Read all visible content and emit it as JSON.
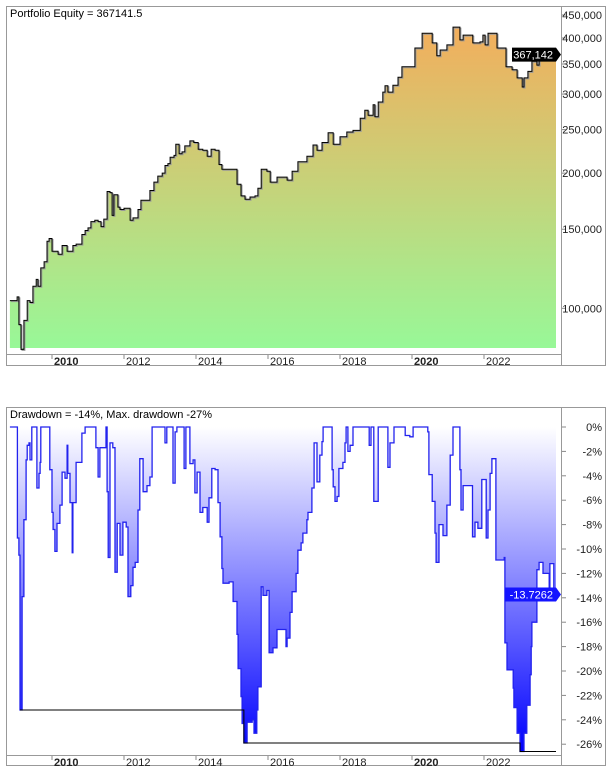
{
  "chart_data": [
    {
      "type": "area",
      "title": "Portfolio Equity = 367141.5",
      "y_scale": "log",
      "ylim": [
        80000,
        460000
      ],
      "xlim": [
        2008.8,
        2024.0
      ],
      "y_ticks": [
        100000,
        150000,
        200000,
        250000,
        300000,
        350000,
        400000,
        450000
      ],
      "x_ticks": [
        {
          "year": 2010,
          "label": "2010",
          "bold": true
        },
        {
          "year": 2012,
          "label": "2012",
          "bold": false
        },
        {
          "year": 2014,
          "label": "2014",
          "bold": false
        },
        {
          "year": 2016,
          "label": "2016",
          "bold": false
        },
        {
          "year": 2018,
          "label": "2018",
          "bold": false
        },
        {
          "year": 2020,
          "label": "2020",
          "bold": true
        },
        {
          "year": 2022,
          "label": "2022",
          "bold": false
        }
      ],
      "current_value_label": "367,142",
      "colors": {
        "top": "#f6ab5a",
        "bottom": "#98f898",
        "line": "#000000"
      },
      "series": [
        [
          2008.83,
          104000
        ],
        [
          2009.03,
          106000
        ],
        [
          2009.08,
          92000
        ],
        [
          2009.14,
          81000
        ],
        [
          2009.22,
          94000
        ],
        [
          2009.31,
          104000
        ],
        [
          2009.39,
          103000
        ],
        [
          2009.47,
          112000
        ],
        [
          2009.56,
          116000
        ],
        [
          2009.61,
          112000
        ],
        [
          2009.69,
          123000
        ],
        [
          2009.78,
          127000
        ],
        [
          2009.86,
          141000
        ],
        [
          2009.92,
          143000
        ],
        [
          2010.0,
          134000
        ],
        [
          2010.17,
          132000
        ],
        [
          2010.28,
          138000
        ],
        [
          2010.42,
          134000
        ],
        [
          2010.58,
          138000
        ],
        [
          2010.67,
          139000
        ],
        [
          2010.83,
          146000
        ],
        [
          2010.92,
          149000
        ],
        [
          2011.0,
          151000
        ],
        [
          2011.08,
          156000
        ],
        [
          2011.19,
          157000
        ],
        [
          2011.28,
          156000
        ],
        [
          2011.36,
          152000
        ],
        [
          2011.44,
          158000
        ],
        [
          2011.53,
          182000
        ],
        [
          2011.61,
          181000
        ],
        [
          2011.67,
          161000
        ],
        [
          2011.72,
          179000
        ],
        [
          2011.83,
          168000
        ],
        [
          2011.89,
          166000
        ],
        [
          2012.0,
          167000
        ],
        [
          2012.17,
          157000
        ],
        [
          2012.25,
          159000
        ],
        [
          2012.39,
          166000
        ],
        [
          2012.47,
          174000
        ],
        [
          2012.72,
          183000
        ],
        [
          2012.83,
          191000
        ],
        [
          2012.94,
          197000
        ],
        [
          2013.06,
          200000
        ],
        [
          2013.14,
          208000
        ],
        [
          2013.22,
          210000
        ],
        [
          2013.28,
          217000
        ],
        [
          2013.39,
          219000
        ],
        [
          2013.44,
          232000
        ],
        [
          2013.53,
          221000
        ],
        [
          2013.61,
          223000
        ],
        [
          2013.69,
          230000
        ],
        [
          2013.83,
          236000
        ],
        [
          2013.94,
          234000
        ],
        [
          2014.06,
          226000
        ],
        [
          2014.19,
          225000
        ],
        [
          2014.31,
          218000
        ],
        [
          2014.42,
          226000
        ],
        [
          2014.53,
          225000
        ],
        [
          2014.64,
          209000
        ],
        [
          2014.72,
          204000
        ],
        [
          2015.14,
          189000
        ],
        [
          2015.25,
          178000
        ],
        [
          2015.36,
          175000
        ],
        [
          2015.5,
          177000
        ],
        [
          2015.64,
          178000
        ],
        [
          2015.72,
          185000
        ],
        [
          2015.81,
          204000
        ],
        [
          2015.97,
          202000
        ],
        [
          2016.06,
          191000
        ],
        [
          2016.25,
          196000
        ],
        [
          2016.53,
          193000
        ],
        [
          2016.67,
          202000
        ],
        [
          2016.83,
          212000
        ],
        [
          2017.08,
          218000
        ],
        [
          2017.25,
          231000
        ],
        [
          2017.36,
          225000
        ],
        [
          2017.5,
          234000
        ],
        [
          2017.67,
          246000
        ],
        [
          2017.81,
          232000
        ],
        [
          2018.0,
          241000
        ],
        [
          2018.19,
          247000
        ],
        [
          2018.36,
          249000
        ],
        [
          2018.56,
          265000
        ],
        [
          2018.69,
          276000
        ],
        [
          2018.78,
          269000
        ],
        [
          2018.92,
          284000
        ],
        [
          2018.97,
          267000
        ],
        [
          2019.06,
          288000
        ],
        [
          2019.19,
          303000
        ],
        [
          2019.25,
          313000
        ],
        [
          2019.33,
          303000
        ],
        [
          2019.47,
          314000
        ],
        [
          2019.61,
          327000
        ],
        [
          2019.72,
          345000
        ],
        [
          2020.08,
          380000
        ],
        [
          2020.28,
          410000
        ],
        [
          2020.56,
          390000
        ],
        [
          2020.69,
          365000
        ],
        [
          2020.78,
          376000
        ],
        [
          2020.97,
          386000
        ],
        [
          2021.14,
          423000
        ],
        [
          2021.33,
          396000
        ],
        [
          2021.42,
          406000
        ],
        [
          2021.69,
          390000
        ],
        [
          2021.89,
          392000
        ],
        [
          2021.97,
          406000
        ],
        [
          2022.03,
          386000
        ],
        [
          2022.11,
          410000
        ],
        [
          2022.36,
          380000
        ],
        [
          2022.61,
          345000
        ],
        [
          2022.78,
          340000
        ],
        [
          2022.92,
          326000
        ],
        [
          2023.06,
          311000
        ],
        [
          2023.11,
          326000
        ],
        [
          2023.22,
          337000
        ],
        [
          2023.33,
          355000
        ],
        [
          2023.47,
          348000
        ],
        [
          2023.53,
          376000
        ],
        [
          2023.64,
          373000
        ],
        [
          2023.78,
          370000
        ],
        [
          2023.83,
          376000
        ],
        [
          2023.92,
          368000
        ],
        [
          2024.0,
          367142
        ]
      ]
    },
    {
      "type": "area",
      "title": "Drawdown = -14%, Max. drawdown -27%",
      "ylim": [
        -27.5,
        0
      ],
      "xlim": [
        2008.8,
        2024.0
      ],
      "y_ticks": [
        0,
        -2,
        -4,
        -6,
        -8,
        -10,
        -12,
        -14,
        -16,
        -18,
        -20,
        -22,
        -24,
        -26
      ],
      "y_tick_labels": [
        "0%",
        "-2%",
        "-4%",
        "-6%",
        "-8%",
        "-10%",
        "-12%",
        "-14%",
        "-16%",
        "-18%",
        "-20%",
        "-22%",
        "-24%",
        "-26%"
      ],
      "x_ticks": [
        {
          "year": 2010,
          "label": "2010",
          "bold": true
        },
        {
          "year": 2012,
          "label": "2012",
          "bold": false
        },
        {
          "year": 2014,
          "label": "2014",
          "bold": false
        },
        {
          "year": 2016,
          "label": "2016",
          "bold": false
        },
        {
          "year": 2018,
          "label": "2018",
          "bold": false
        },
        {
          "year": 2020,
          "label": "2020",
          "bold": true
        },
        {
          "year": 2022,
          "label": "2022",
          "bold": false
        }
      ],
      "current_value_label": "-13.7262",
      "colors": {
        "top": "#ffffff",
        "bottom": "#0000ff",
        "line": "#2222ee",
        "max_line": "#000000"
      },
      "max_drawdown_steps": [
        [
          2009.11,
          -23.2
        ],
        [
          2015.33,
          -25.9
        ],
        [
          2023.0,
          -26.6
        ]
      ],
      "series": [
        [
          2008.83,
          0
        ],
        [
          2009.03,
          0
        ],
        [
          2009.04,
          -9.1
        ],
        [
          2009.08,
          -10.5
        ],
        [
          2009.11,
          -23.2
        ],
        [
          2009.17,
          -13.9
        ],
        [
          2009.22,
          -7.6
        ],
        [
          2009.28,
          -2.7
        ],
        [
          2009.31,
          -1.5
        ],
        [
          2009.36,
          -1.3
        ],
        [
          2009.39,
          -2.7
        ],
        [
          2009.44,
          0
        ],
        [
          2009.58,
          -5.0
        ],
        [
          2009.64,
          -3.8
        ],
        [
          2009.67,
          -2.9
        ],
        [
          2009.69,
          0
        ],
        [
          2009.94,
          -3.5
        ],
        [
          2010.0,
          -7.0
        ],
        [
          2010.03,
          -8.4
        ],
        [
          2010.08,
          -10.2
        ],
        [
          2010.14,
          -7.9
        ],
        [
          2010.22,
          -6.4
        ],
        [
          2010.28,
          -3.7
        ],
        [
          2010.36,
          -4.2
        ],
        [
          2010.42,
          -1.5
        ],
        [
          2010.44,
          -3.8
        ],
        [
          2010.5,
          -6.2
        ],
        [
          2010.56,
          -10.3
        ],
        [
          2010.58,
          -6.2
        ],
        [
          2010.67,
          -2.9
        ],
        [
          2010.83,
          -0.5
        ],
        [
          2010.92,
          0
        ],
        [
          2011.22,
          -1.7
        ],
        [
          2011.28,
          -4.1
        ],
        [
          2011.33,
          -1.7
        ],
        [
          2011.5,
          0
        ],
        [
          2011.53,
          -5.3
        ],
        [
          2011.56,
          -10.7
        ],
        [
          2011.61,
          -1.3
        ],
        [
          2011.69,
          -1.7
        ],
        [
          2011.75,
          -11.9
        ],
        [
          2011.81,
          -7.9
        ],
        [
          2011.89,
          -10.5
        ],
        [
          2011.97,
          -7.8
        ],
        [
          2012.06,
          -8.2
        ],
        [
          2012.11,
          -13.9
        ],
        [
          2012.19,
          -13.0
        ],
        [
          2012.25,
          -11.5
        ],
        [
          2012.31,
          -11.1
        ],
        [
          2012.39,
          -6.8
        ],
        [
          2012.44,
          -2.6
        ],
        [
          2012.53,
          -5.3
        ],
        [
          2012.64,
          -4.8
        ],
        [
          2012.72,
          -4.1
        ],
        [
          2012.78,
          0
        ],
        [
          2013.14,
          -1.3
        ],
        [
          2013.19,
          0
        ],
        [
          2013.36,
          -4.6
        ],
        [
          2013.42,
          -0.4
        ],
        [
          2013.47,
          0
        ],
        [
          2013.67,
          -3.4
        ],
        [
          2013.72,
          0
        ],
        [
          2013.83,
          -3.0
        ],
        [
          2013.92,
          -2.7
        ],
        [
          2013.97,
          -5.4
        ],
        [
          2014.03,
          -3.7
        ],
        [
          2014.11,
          -7.0
        ],
        [
          2014.19,
          -6.6
        ],
        [
          2014.31,
          -7.8
        ],
        [
          2014.36,
          -5.8
        ],
        [
          2014.44,
          -3.4
        ],
        [
          2014.53,
          -3.5
        ],
        [
          2014.61,
          -6.2
        ],
        [
          2014.67,
          -9.0
        ],
        [
          2014.72,
          -11.6
        ],
        [
          2014.75,
          -12.8
        ],
        [
          2014.92,
          -12.7
        ],
        [
          2015.03,
          -14.3
        ],
        [
          2015.14,
          -17.0
        ],
        [
          2015.17,
          -19.8
        ],
        [
          2015.25,
          -22.1
        ],
        [
          2015.28,
          -24.3
        ],
        [
          2015.33,
          -25.9
        ],
        [
          2015.42,
          -24.2
        ],
        [
          2015.56,
          -24.0
        ],
        [
          2015.61,
          -25.1
        ],
        [
          2015.69,
          -23.2
        ],
        [
          2015.72,
          -21.3
        ],
        [
          2015.81,
          -13.1
        ],
        [
          2015.86,
          -13.8
        ],
        [
          2015.97,
          -13.4
        ],
        [
          2016.03,
          -18.5
        ],
        [
          2016.14,
          -18.1
        ],
        [
          2016.25,
          -16.6
        ],
        [
          2016.5,
          -18.0
        ],
        [
          2016.53,
          -17.3
        ],
        [
          2016.61,
          -15.2
        ],
        [
          2016.67,
          -13.5
        ],
        [
          2016.78,
          -12.0
        ],
        [
          2016.83,
          -10.1
        ],
        [
          2016.92,
          -9.5
        ],
        [
          2016.97,
          -8.7
        ],
        [
          2017.08,
          -7.6
        ],
        [
          2017.11,
          -7.0
        ],
        [
          2017.22,
          -5.0
        ],
        [
          2017.28,
          -1.3
        ],
        [
          2017.36,
          -4.5
        ],
        [
          2017.44,
          -2.3
        ],
        [
          2017.5,
          -1.2
        ],
        [
          2017.53,
          0
        ],
        [
          2017.78,
          -3.5
        ],
        [
          2017.81,
          -4.9
        ],
        [
          2017.86,
          -6.1
        ],
        [
          2017.92,
          -5.7
        ],
        [
          2017.97,
          -3.4
        ],
        [
          2018.08,
          -2.9
        ],
        [
          2018.14,
          -1.3
        ],
        [
          2018.17,
          0
        ],
        [
          2018.22,
          -2.0
        ],
        [
          2018.28,
          -1.5
        ],
        [
          2018.36,
          0
        ],
        [
          2018.81,
          -1.5
        ],
        [
          2018.86,
          0
        ],
        [
          2018.94,
          -6.1
        ],
        [
          2019.06,
          0
        ],
        [
          2019.33,
          -3.3
        ],
        [
          2019.39,
          -1.3
        ],
        [
          2019.5,
          0
        ],
        [
          2019.81,
          -0.7
        ],
        [
          2019.94,
          -0.8
        ],
        [
          2020.03,
          0
        ],
        [
          2020.44,
          -0.4
        ],
        [
          2020.47,
          -3.9
        ],
        [
          2020.56,
          -6.1
        ],
        [
          2020.64,
          -8.7
        ],
        [
          2020.67,
          -11.1
        ],
        [
          2020.75,
          -8.0
        ],
        [
          2020.86,
          -8.9
        ],
        [
          2020.97,
          -6.4
        ],
        [
          2021.06,
          -2.3
        ],
        [
          2021.14,
          0
        ],
        [
          2021.33,
          -3.5
        ],
        [
          2021.36,
          -6.8
        ],
        [
          2021.42,
          -4.8
        ],
        [
          2021.68,
          -9.0
        ],
        [
          2021.75,
          -7.8
        ],
        [
          2021.83,
          -8.3
        ],
        [
          2021.94,
          -4.3
        ],
        [
          2022.06,
          -9.1
        ],
        [
          2022.11,
          -6.8
        ],
        [
          2022.17,
          -3.8
        ],
        [
          2022.22,
          -2.6
        ],
        [
          2022.33,
          -10.9
        ],
        [
          2022.56,
          -10.7
        ],
        [
          2022.58,
          -17.7
        ],
        [
          2022.64,
          -19.9
        ],
        [
          2022.81,
          -21.4
        ],
        [
          2022.83,
          -23.0
        ],
        [
          2022.92,
          -25.1
        ],
        [
          2023.0,
          -26.6
        ],
        [
          2023.11,
          -25.1
        ],
        [
          2023.19,
          -22.8
        ],
        [
          2023.28,
          -20.3
        ],
        [
          2023.31,
          -18.0
        ],
        [
          2023.33,
          -16.0
        ],
        [
          2023.47,
          -11.7
        ],
        [
          2023.53,
          -11.1
        ],
        [
          2023.64,
          -12.0
        ],
        [
          2023.81,
          -13.9
        ],
        [
          2023.83,
          -11.2
        ],
        [
          2023.94,
          -13.3
        ],
        [
          2024.0,
          -13.7262
        ]
      ]
    }
  ]
}
